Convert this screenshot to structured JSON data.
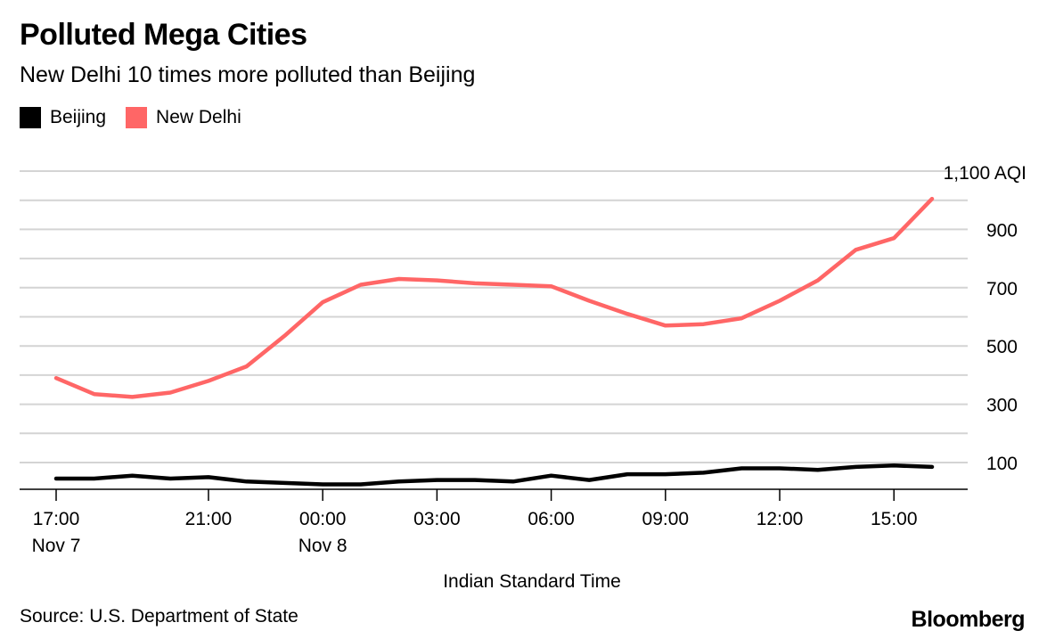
{
  "header": {
    "title": "Polluted Mega Cities",
    "subtitle": "New Delhi 10 times more polluted than Beijing"
  },
  "footer": {
    "source": "Source: U.S. Department of State",
    "brand": "Bloomberg"
  },
  "chart_data": {
    "type": "line",
    "title": "Polluted Mega Cities",
    "subtitle": "New Delhi 10 times more polluted than Beijing",
    "xlabel": "Indian Standard Time",
    "ylabel": "AQI",
    "ylim": [
      0,
      1100
    ],
    "y_ticks": [
      {
        "value": 100,
        "label": "100"
      },
      {
        "value": 300,
        "label": "300"
      },
      {
        "value": 500,
        "label": "500"
      },
      {
        "value": 700,
        "label": "700"
      },
      {
        "value": 900,
        "label": "900"
      },
      {
        "value": 1100,
        "label": "1,100 AQI"
      }
    ],
    "gridlines": [
      100,
      200,
      300,
      400,
      500,
      600,
      700,
      800,
      900,
      1000,
      1100
    ],
    "x_hours": [
      0,
      1,
      2,
      3,
      4,
      5,
      6,
      7,
      8,
      9,
      10,
      11,
      12,
      13,
      14,
      15,
      16,
      17,
      18,
      19,
      20,
      21,
      22,
      23
    ],
    "x_ticks": [
      {
        "hour": 0,
        "label": "17:00",
        "sublabel": "Nov 7"
      },
      {
        "hour": 4,
        "label": "21:00",
        "sublabel": ""
      },
      {
        "hour": 7,
        "label": "00:00",
        "sublabel": "Nov 8"
      },
      {
        "hour": 10,
        "label": "03:00",
        "sublabel": ""
      },
      {
        "hour": 13,
        "label": "06:00",
        "sublabel": ""
      },
      {
        "hour": 16,
        "label": "09:00",
        "sublabel": ""
      },
      {
        "hour": 19,
        "label": "12:00",
        "sublabel": ""
      },
      {
        "hour": 22,
        "label": "15:00",
        "sublabel": ""
      }
    ],
    "legend": [
      {
        "name": "Beijing",
        "color": "#000000"
      },
      {
        "name": "New Delhi",
        "color": "#ff6666"
      }
    ],
    "series": [
      {
        "name": "Beijing",
        "color": "#000000",
        "values": [
          45,
          45,
          55,
          45,
          50,
          35,
          30,
          25,
          25,
          35,
          40,
          40,
          35,
          55,
          40,
          60,
          60,
          65,
          80,
          80,
          75,
          85,
          90,
          85
        ]
      },
      {
        "name": "New Delhi",
        "color": "#ff6666",
        "values": [
          390,
          335,
          325,
          340,
          380,
          430,
          535,
          650,
          710,
          730,
          725,
          715,
          710,
          705,
          655,
          610,
          570,
          575,
          595,
          655,
          725,
          830,
          870,
          1005
        ]
      }
    ]
  }
}
